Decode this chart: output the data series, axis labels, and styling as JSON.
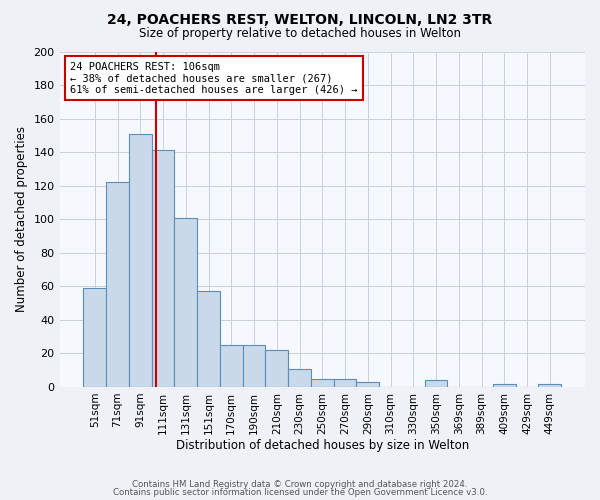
{
  "title": "24, POACHERS REST, WELTON, LINCOLN, LN2 3TR",
  "subtitle": "Size of property relative to detached houses in Welton",
  "xlabel": "Distribution of detached houses by size in Welton",
  "ylabel": "Number of detached properties",
  "bar_labels": [
    "51sqm",
    "71sqm",
    "91sqm",
    "111sqm",
    "131sqm",
    "151sqm",
    "170sqm",
    "190sqm",
    "210sqm",
    "230sqm",
    "250sqm",
    "270sqm",
    "290sqm",
    "310sqm",
    "330sqm",
    "350sqm",
    "369sqm",
    "389sqm",
    "409sqm",
    "429sqm",
    "449sqm"
  ],
  "bar_heights": [
    59,
    122,
    151,
    141,
    101,
    57,
    25,
    25,
    22,
    11,
    5,
    5,
    3,
    0,
    0,
    4,
    0,
    0,
    2,
    0,
    2
  ],
  "bar_color": "#c9d9ea",
  "bar_edge_color": "#5b8db8",
  "vline_x": 2.67,
  "vline_color": "#cc0000",
  "annotation_text": "24 POACHERS REST: 106sqm\n← 38% of detached houses are smaller (267)\n61% of semi-detached houses are larger (426) →",
  "annotation_box_color": "#ffffff",
  "annotation_box_edge_color": "#cc0000",
  "ylim": [
    0,
    200
  ],
  "yticks": [
    0,
    20,
    40,
    60,
    80,
    100,
    120,
    140,
    160,
    180,
    200
  ],
  "footer1": "Contains HM Land Registry data © Crown copyright and database right 2024.",
  "footer2": "Contains public sector information licensed under the Open Government Licence v3.0.",
  "bg_color": "#eef2f7",
  "plot_bg_color": "#f5f8fc",
  "grid_color": "#c8d0dc"
}
